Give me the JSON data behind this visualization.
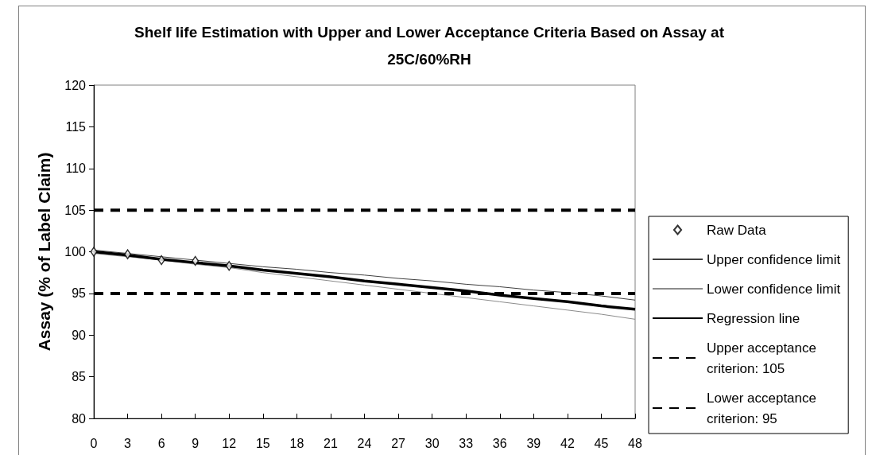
{
  "chart_data": {
    "type": "line",
    "title": "Shelf life Estimation with Upper and Lower Acceptance Criteria Based on Assay at 25C/60%RH",
    "ylabel": "Assay (% of Label Claim)",
    "x": [
      0,
      3,
      6,
      9,
      12,
      15,
      18,
      21,
      24,
      27,
      30,
      33,
      36,
      39,
      42,
      45,
      48
    ],
    "xlim": [
      0,
      48
    ],
    "xticks": [
      0,
      3,
      6,
      9,
      12,
      15,
      18,
      21,
      24,
      27,
      30,
      33,
      36,
      39,
      42,
      45,
      48
    ],
    "ylim": [
      80,
      120
    ],
    "yticks": [
      80,
      85,
      90,
      95,
      100,
      105,
      110,
      115,
      120
    ],
    "grid": false,
    "legend": "right",
    "marker": "none",
    "line_style": "solid",
    "series": [
      {
        "name": "Raw Data",
        "type": "scatter",
        "marker": "diamond",
        "color": "#000000",
        "x": [
          0,
          3,
          6,
          9,
          12
        ],
        "values": [
          100.0,
          99.7,
          99.0,
          98.9,
          98.3
        ]
      },
      {
        "name": "Upper confidence limit",
        "color": "#404040",
        "values": [
          100.2,
          99.8,
          99.4,
          99.0,
          98.6,
          98.2,
          97.9,
          97.5,
          97.2,
          96.8,
          96.5,
          96.1,
          95.8,
          95.4,
          95.1,
          94.7,
          94.2
        ]
      },
      {
        "name": "Lower confidence limit",
        "color": "#8c8c8c",
        "values": [
          99.8,
          99.4,
          99.0,
          98.5,
          98.1,
          97.5,
          97.0,
          96.5,
          96.0,
          95.5,
          95.0,
          94.5,
          94.0,
          93.5,
          93.0,
          92.5,
          91.9
        ]
      },
      {
        "name": "Regression line",
        "color": "#000000",
        "values": [
          100.0,
          99.6,
          99.1,
          98.7,
          98.3,
          97.8,
          97.4,
          97.0,
          96.5,
          96.1,
          95.7,
          95.3,
          94.8,
          94.4,
          94.0,
          93.5,
          93.1
        ]
      },
      {
        "name": "Upper acceptance criterion: 105",
        "color": "#000000",
        "line_style": "dashed",
        "x": [
          0,
          48
        ],
        "values": [
          105,
          105
        ]
      },
      {
        "name": "Lower acceptance criterion: 95",
        "color": "#000000",
        "line_style": "dashed",
        "x": [
          0,
          48
        ],
        "values": [
          95,
          95
        ]
      }
    ]
  }
}
